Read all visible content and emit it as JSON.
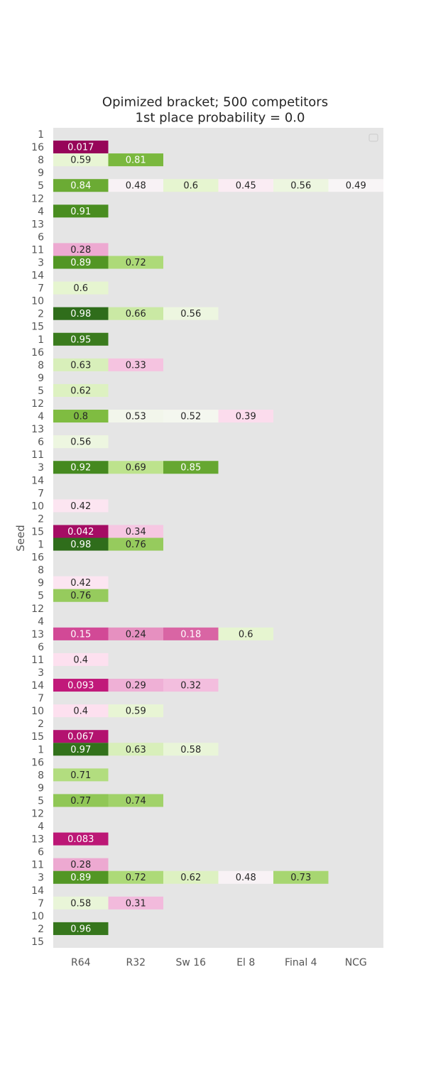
{
  "chart_data": {
    "type": "heatmap",
    "title": "Opimized bracket; 500 competitors",
    "subtitle": "1st place probability = 0.0",
    "ylabel": "Seed",
    "xlabel": "",
    "columns": [
      "R64",
      "R32",
      "Sw 16",
      "El 8",
      "Final 4",
      "NCG"
    ],
    "seeds": [
      1,
      16,
      8,
      9,
      5,
      12,
      4,
      13,
      6,
      11,
      3,
      14,
      7,
      10,
      2,
      15,
      1,
      16,
      8,
      9,
      5,
      12,
      4,
      13,
      6,
      11,
      3,
      14,
      7,
      10,
      2,
      15,
      1,
      16,
      8,
      9,
      5,
      12,
      4,
      13,
      6,
      11,
      3,
      14,
      7,
      10,
      2,
      15,
      1,
      16,
      8,
      9,
      5,
      12,
      4,
      13,
      6,
      11,
      3,
      14,
      7,
      10,
      2,
      15
    ],
    "cells": [
      {
        "row": 1,
        "col": 0,
        "value": "0.017"
      },
      {
        "row": 2,
        "col": 0,
        "value": "0.59"
      },
      {
        "row": 2,
        "col": 1,
        "value": "0.81"
      },
      {
        "row": 4,
        "col": 0,
        "value": "0.84"
      },
      {
        "row": 4,
        "col": 1,
        "value": "0.48"
      },
      {
        "row": 4,
        "col": 2,
        "value": "0.6"
      },
      {
        "row": 4,
        "col": 3,
        "value": "0.45"
      },
      {
        "row": 4,
        "col": 4,
        "value": "0.56"
      },
      {
        "row": 4,
        "col": 5,
        "value": "0.49"
      },
      {
        "row": 6,
        "col": 0,
        "value": "0.91"
      },
      {
        "row": 9,
        "col": 0,
        "value": "0.28"
      },
      {
        "row": 10,
        "col": 0,
        "value": "0.89"
      },
      {
        "row": 10,
        "col": 1,
        "value": "0.72"
      },
      {
        "row": 12,
        "col": 0,
        "value": "0.6"
      },
      {
        "row": 14,
        "col": 0,
        "value": "0.98"
      },
      {
        "row": 14,
        "col": 1,
        "value": "0.66"
      },
      {
        "row": 14,
        "col": 2,
        "value": "0.56"
      },
      {
        "row": 16,
        "col": 0,
        "value": "0.95"
      },
      {
        "row": 18,
        "col": 0,
        "value": "0.63"
      },
      {
        "row": 18,
        "col": 1,
        "value": "0.33"
      },
      {
        "row": 20,
        "col": 0,
        "value": "0.62"
      },
      {
        "row": 22,
        "col": 0,
        "value": "0.8"
      },
      {
        "row": 22,
        "col": 1,
        "value": "0.53"
      },
      {
        "row": 22,
        "col": 2,
        "value": "0.52"
      },
      {
        "row": 22,
        "col": 3,
        "value": "0.39"
      },
      {
        "row": 24,
        "col": 0,
        "value": "0.56"
      },
      {
        "row": 26,
        "col": 0,
        "value": "0.92"
      },
      {
        "row": 26,
        "col": 1,
        "value": "0.69"
      },
      {
        "row": 26,
        "col": 2,
        "value": "0.85"
      },
      {
        "row": 29,
        "col": 0,
        "value": "0.42"
      },
      {
        "row": 31,
        "col": 0,
        "value": "0.042"
      },
      {
        "row": 31,
        "col": 1,
        "value": "0.34"
      },
      {
        "row": 32,
        "col": 0,
        "value": "0.98"
      },
      {
        "row": 32,
        "col": 1,
        "value": "0.76"
      },
      {
        "row": 35,
        "col": 0,
        "value": "0.42"
      },
      {
        "row": 36,
        "col": 0,
        "value": "0.76"
      },
      {
        "row": 39,
        "col": 0,
        "value": "0.15"
      },
      {
        "row": 39,
        "col": 1,
        "value": "0.24"
      },
      {
        "row": 39,
        "col": 2,
        "value": "0.18"
      },
      {
        "row": 39,
        "col": 3,
        "value": "0.6"
      },
      {
        "row": 41,
        "col": 0,
        "value": "0.4"
      },
      {
        "row": 43,
        "col": 0,
        "value": "0.093"
      },
      {
        "row": 43,
        "col": 1,
        "value": "0.29"
      },
      {
        "row": 43,
        "col": 2,
        "value": "0.32"
      },
      {
        "row": 45,
        "col": 0,
        "value": "0.4"
      },
      {
        "row": 45,
        "col": 1,
        "value": "0.59"
      },
      {
        "row": 47,
        "col": 0,
        "value": "0.067"
      },
      {
        "row": 48,
        "col": 0,
        "value": "0.97"
      },
      {
        "row": 48,
        "col": 1,
        "value": "0.63"
      },
      {
        "row": 48,
        "col": 2,
        "value": "0.58"
      },
      {
        "row": 50,
        "col": 0,
        "value": "0.71"
      },
      {
        "row": 52,
        "col": 0,
        "value": "0.77"
      },
      {
        "row": 52,
        "col": 1,
        "value": "0.74"
      },
      {
        "row": 55,
        "col": 0,
        "value": "0.083"
      },
      {
        "row": 57,
        "col": 0,
        "value": "0.28"
      },
      {
        "row": 58,
        "col": 0,
        "value": "0.89"
      },
      {
        "row": 58,
        "col": 1,
        "value": "0.72"
      },
      {
        "row": 58,
        "col": 2,
        "value": "0.62"
      },
      {
        "row": 58,
        "col": 3,
        "value": "0.48"
      },
      {
        "row": 58,
        "col": 4,
        "value": "0.73"
      },
      {
        "row": 60,
        "col": 0,
        "value": "0.58"
      },
      {
        "row": 60,
        "col": 1,
        "value": "0.31"
      },
      {
        "row": 62,
        "col": 0,
        "value": "0.96"
      }
    ],
    "colormap": "PiYG",
    "value_range": [
      0,
      1
    ],
    "grid": false,
    "legend": "top-right (empty)"
  },
  "colors": {
    "background": "#e5e5e5",
    "text_dark": "#262626",
    "tick": "#555555"
  }
}
